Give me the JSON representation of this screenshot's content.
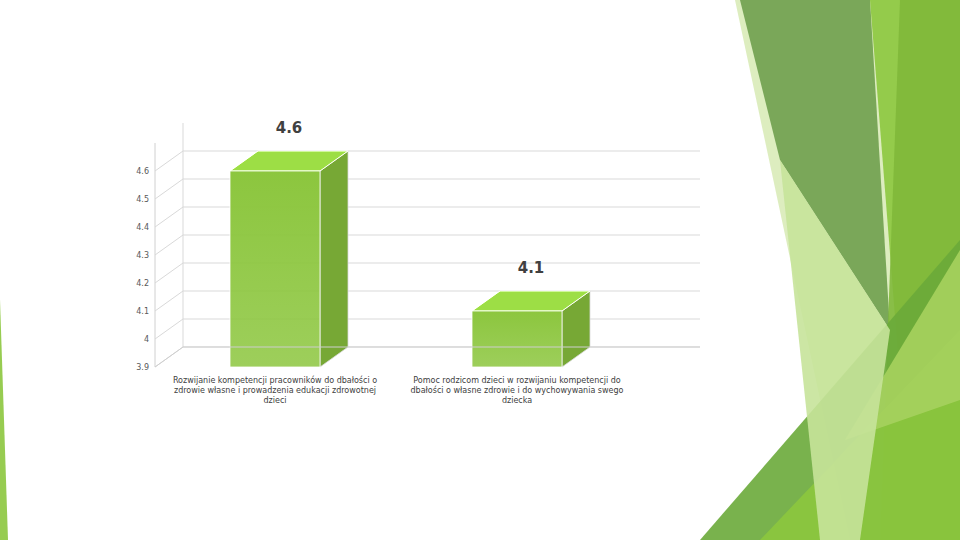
{
  "chart_data": {
    "type": "bar",
    "categories": [
      "Rozwijanie kompetencji pracowników do dbałości o zdrowie własne i prowadzenia edukacji zdrowotnej dzieci",
      "Pomoc rodzicom dzieci w rozwijaniu kompetencji do dbałości o własne zdrowie i do wychowywania swego dziecka"
    ],
    "values": [
      4.6,
      4.1
    ],
    "color": "#8cc63e",
    "ylim": [
      3.9,
      4.7
    ],
    "yticks": [
      3.9,
      4,
      4.1,
      4.2,
      4.3,
      4.4,
      4.5,
      4.6
    ],
    "grid": true,
    "data_labels": true
  }
}
